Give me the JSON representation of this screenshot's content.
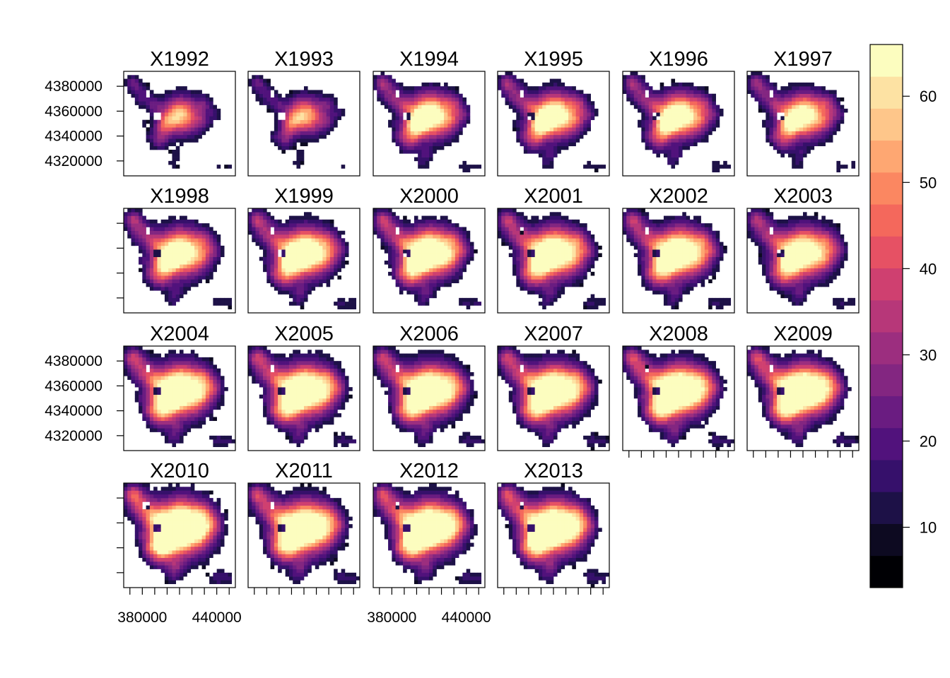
{
  "chart_data": {
    "type": "heatmap",
    "layout": {
      "ncol": 6,
      "nrow": 4
    },
    "panels": [
      {
        "title": "X1992",
        "intensity": 0.55,
        "extent": 0.35
      },
      {
        "title": "X1993",
        "intensity": 0.55,
        "extent": 0.3
      },
      {
        "title": "X1994",
        "intensity": 0.75,
        "extent": 0.6
      },
      {
        "title": "X1995",
        "intensity": 0.75,
        "extent": 0.6
      },
      {
        "title": "X1996",
        "intensity": 0.75,
        "extent": 0.6
      },
      {
        "title": "X1997",
        "intensity": 0.7,
        "extent": 0.6
      },
      {
        "title": "X1998",
        "intensity": 0.75,
        "extent": 0.7
      },
      {
        "title": "X1999",
        "intensity": 0.8,
        "extent": 0.75
      },
      {
        "title": "X2000",
        "intensity": 0.85,
        "extent": 0.75
      },
      {
        "title": "X2001",
        "intensity": 0.8,
        "extent": 0.8
      },
      {
        "title": "X2002",
        "intensity": 0.8,
        "extent": 0.8
      },
      {
        "title": "X2003",
        "intensity": 0.75,
        "extent": 0.8
      },
      {
        "title": "X2004",
        "intensity": 0.85,
        "extent": 0.85
      },
      {
        "title": "X2005",
        "intensity": 0.85,
        "extent": 0.85
      },
      {
        "title": "X2006",
        "intensity": 0.85,
        "extent": 0.85
      },
      {
        "title": "X2007",
        "intensity": 0.85,
        "extent": 0.85
      },
      {
        "title": "X2008",
        "intensity": 0.9,
        "extent": 0.85
      },
      {
        "title": "X2009",
        "intensity": 0.9,
        "extent": 0.85
      },
      {
        "title": "X2010",
        "intensity": 0.95,
        "extent": 0.95
      },
      {
        "title": "X2011",
        "intensity": 0.85,
        "extent": 0.9
      },
      {
        "title": "X2012",
        "intensity": 0.9,
        "extent": 0.9
      },
      {
        "title": "X2013",
        "intensity": 0.9,
        "extent": 0.9
      }
    ],
    "x_axis": {
      "range": [
        365000,
        455000
      ],
      "ticks": [
        370000,
        380000,
        390000,
        400000,
        410000,
        420000,
        430000,
        440000,
        450000
      ],
      "tick_labels": [
        {
          "value": 380000,
          "label": "380000"
        },
        {
          "value": 440000,
          "label": "440000"
        }
      ],
      "labels_on_columns": [
        1,
        3
      ]
    },
    "y_axis": {
      "range": [
        4308000,
        4392000
      ],
      "ticks": [
        4320000,
        4340000,
        4360000,
        4380000
      ],
      "tick_labels": [
        "4320000",
        "4340000",
        "4360000",
        "4380000"
      ],
      "labels_on_rows": [
        1,
        3
      ]
    },
    "colorbar": {
      "range": [
        3,
        66
      ],
      "ticks": [
        10,
        20,
        30,
        40,
        50,
        60
      ],
      "tick_labels": [
        "10",
        "20",
        "30",
        "40",
        "50",
        "60"
      ],
      "colors": [
        "#000004",
        "#0d0a21",
        "#1d1147",
        "#36106b",
        "#51127c",
        "#6a1c81",
        "#832681",
        "#9c2e7f",
        "#b73779",
        "#cf4070",
        "#e65164",
        "#f4685c",
        "#fb8761",
        "#fea772",
        "#fec68a",
        "#fde2a3",
        "#fcfdbf"
      ]
    },
    "map": {
      "blobs": [
        [
          414000,
          4356000,
          12000,
          0.95
        ],
        [
          408000,
          4358000,
          10000,
          0.7
        ],
        [
          400000,
          4352000,
          6000,
          0.55
        ],
        [
          396000,
          4345000,
          6000,
          0.45
        ],
        [
          394000,
          4336000,
          6000,
          0.45
        ],
        [
          390000,
          4364000,
          5000,
          0.35
        ],
        [
          382000,
          4370000,
          6000,
          0.32
        ],
        [
          376000,
          4378000,
          6000,
          0.35
        ],
        [
          372000,
          4384000,
          4000,
          0.4
        ],
        [
          430000,
          4366000,
          5000,
          0.35
        ],
        [
          428000,
          4352000,
          5000,
          0.3
        ],
        [
          438000,
          4358000,
          4000,
          0.25
        ],
        [
          405000,
          4318000,
          4000,
          0.2
        ],
        [
          408000,
          4326000,
          3500,
          0.2
        ],
        [
          440000,
          4316000,
          4000,
          0.18
        ],
        [
          450000,
          4316000,
          3000,
          0.15
        ],
        [
          385000,
          4340000,
          3000,
          0.18
        ],
        [
          380000,
          4350000,
          3000,
          0.15
        ]
      ],
      "holes": [
        [
          392000,
          4356000,
          4000
        ],
        [
          384000,
          4374000,
          3000
        ]
      ]
    }
  }
}
